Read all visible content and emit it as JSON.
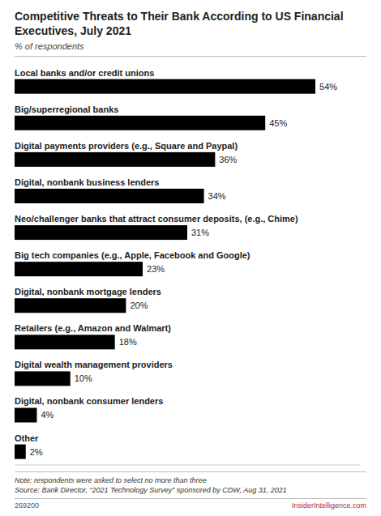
{
  "chart_data": {
    "type": "bar",
    "orientation": "horizontal",
    "title": "Competitive Threats to Their Bank According to US Financial Executives, July 2021",
    "subtitle": "% of respondents",
    "categories": [
      "Local banks and/or credit unions",
      "Big/superregional banks",
      "Digital payments providers (e.g., Square and Paypal)",
      "Digital, nonbank business lenders",
      "Neo/challenger banks that attract consumer deposits, (e.g., Chime)",
      "Big tech companies (e.g., Apple, Facebook and Google)",
      "Digital, nonbank mortgage lenders",
      "Retailers (e.g., Amazon and Walmart)",
      "Digital wealth management providers",
      "Digital, nonbank consumer lenders",
      "Other"
    ],
    "values": [
      54,
      45,
      36,
      34,
      31,
      23,
      20,
      18,
      10,
      4,
      2
    ],
    "value_labels": [
      "54%",
      "45%",
      "36%",
      "34%",
      "31%",
      "23%",
      "20%",
      "18%",
      "10%",
      "4%",
      "2%"
    ],
    "data_labels": true,
    "color": "#000000",
    "xlim": [
      0,
      62
    ],
    "tick_labels": false,
    "grid": false,
    "annotations": [
      "Note: respondents were asked to select no more than three",
      "Source: Bank Director, “2021 Technology Survey” sponsored by CDW, Aug 31, 2021",
      "269200",
      "InsiderIntelligence.com"
    ]
  }
}
